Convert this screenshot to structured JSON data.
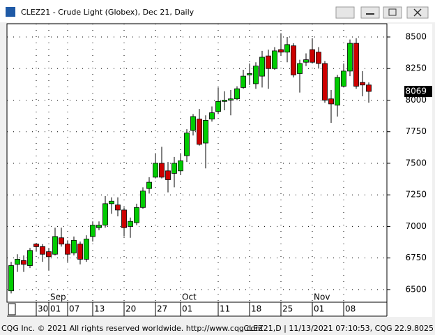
{
  "chart_data": {
    "type": "candlestick",
    "title": "CLEZ21 - Crude Light (Globex), Dec 21, Daily",
    "categories": [
      null,
      null,
      null,
      null,
      "30",
      null,
      "01",
      null,
      null,
      "07",
      null,
      null,
      null,
      "13",
      null,
      null,
      null,
      null,
      "20",
      null,
      null,
      null,
      null,
      "27",
      null,
      null,
      null,
      "01",
      null,
      null,
      null,
      null,
      null,
      "11",
      null,
      null,
      null,
      null,
      "18",
      null,
      null,
      null,
      null,
      "25",
      null,
      null,
      null,
      null,
      "01",
      null,
      null,
      null,
      null,
      "08",
      null,
      null,
      null,
      null
    ],
    "months": [
      null,
      null,
      null,
      null,
      null,
      null,
      "Sep",
      null,
      null,
      null,
      null,
      null,
      null,
      null,
      null,
      null,
      null,
      null,
      null,
      null,
      null,
      null,
      null,
      null,
      null,
      null,
      null,
      "Oct",
      null,
      null,
      null,
      null,
      null,
      null,
      null,
      null,
      null,
      null,
      null,
      null,
      null,
      null,
      null,
      null,
      null,
      null,
      null,
      null,
      "Nov",
      null,
      null,
      null,
      null,
      null,
      null,
      null,
      null,
      null
    ],
    "open": [
      6490,
      6700,
      6730,
      6690,
      6860,
      6840,
      6800,
      6780,
      6910,
      6860,
      6790,
      6860,
      6740,
      6920,
      6990,
      7010,
      7180,
      7170,
      7130,
      7000,
      7030,
      7150,
      7300,
      7390,
      7500,
      7440,
      7420,
      7440,
      7560,
      7760,
      7850,
      7660,
      7850,
      7910,
      7990,
      8000,
      8010,
      8100,
      8200,
      8130,
      8190,
      8350,
      8250,
      8400,
      8380,
      8430,
      8210,
      8300,
      8400,
      8380,
      8290,
      8010,
      7960,
      8110,
      8230,
      8450,
      8140,
      8120
    ],
    "high": [
      6720,
      6780,
      6770,
      6830,
      6870,
      6860,
      6830,
      6990,
      6990,
      6890,
      6920,
      6880,
      6930,
      7040,
      7040,
      7240,
      7230,
      7230,
      7150,
      7070,
      7180,
      7310,
      7390,
      7580,
      7630,
      7510,
      7550,
      7580,
      7770,
      7890,
      7930,
      7880,
      7950,
      8100,
      8070,
      8080,
      8110,
      8240,
      8290,
      8300,
      8390,
      8400,
      8420,
      8530,
      8500,
      8450,
      8320,
      8370,
      8490,
      8420,
      8310,
      8080,
      8200,
      8290,
      8480,
      8490,
      8230,
      8140
    ],
    "low": [
      6470,
      6640,
      6640,
      6670,
      6800,
      6720,
      6650,
      6770,
      6840,
      6720,
      6770,
      6700,
      6720,
      6880,
      6970,
      6990,
      7100,
      7080,
      6920,
      6910,
      7010,
      7140,
      7260,
      7380,
      7380,
      7270,
      7310,
      7410,
      7510,
      7720,
      7640,
      7460,
      7830,
      7890,
      7920,
      7880,
      8000,
      8090,
      8120,
      8090,
      8100,
      8090,
      8240,
      8350,
      8300,
      8180,
      8060,
      8270,
      8290,
      8250,
      7980,
      7820,
      7870,
      8100,
      8190,
      8090,
      8030,
      7980
    ],
    "close": [
      6690,
      6740,
      6700,
      6810,
      6840,
      6780,
      6760,
      6920,
      6860,
      6780,
      6890,
      6740,
      6900,
      7010,
      7010,
      7180,
      7200,
      7130,
      6990,
      7040,
      7150,
      7280,
      7350,
      7500,
      7390,
      7370,
      7500,
      7520,
      7740,
      7870,
      7650,
      7840,
      7900,
      7990,
      8000,
      8010,
      8090,
      8190,
      8210,
      8270,
      8340,
      8250,
      8390,
      8380,
      8440,
      8200,
      8290,
      8320,
      8300,
      8290,
      8000,
      7970,
      8180,
      8230,
      8450,
      8110,
      8120,
      8069
    ],
    "up_color": "#00cc00",
    "down_color": "#cc0000",
    "last_price": 8069,
    "ylim": [
      6400,
      8605
    ],
    "yticks": [
      6500,
      6750,
      7000,
      7250,
      7500,
      7750,
      8000,
      8250,
      8500
    ],
    "grid": true,
    "footer_left": "CQG Inc. © 2021 All rights reserved worldwide. http://www.cqg.com",
    "footer_right": "CLEZ21,D | 11/13/2021 07:10:53, CQG 22.9.8025"
  }
}
